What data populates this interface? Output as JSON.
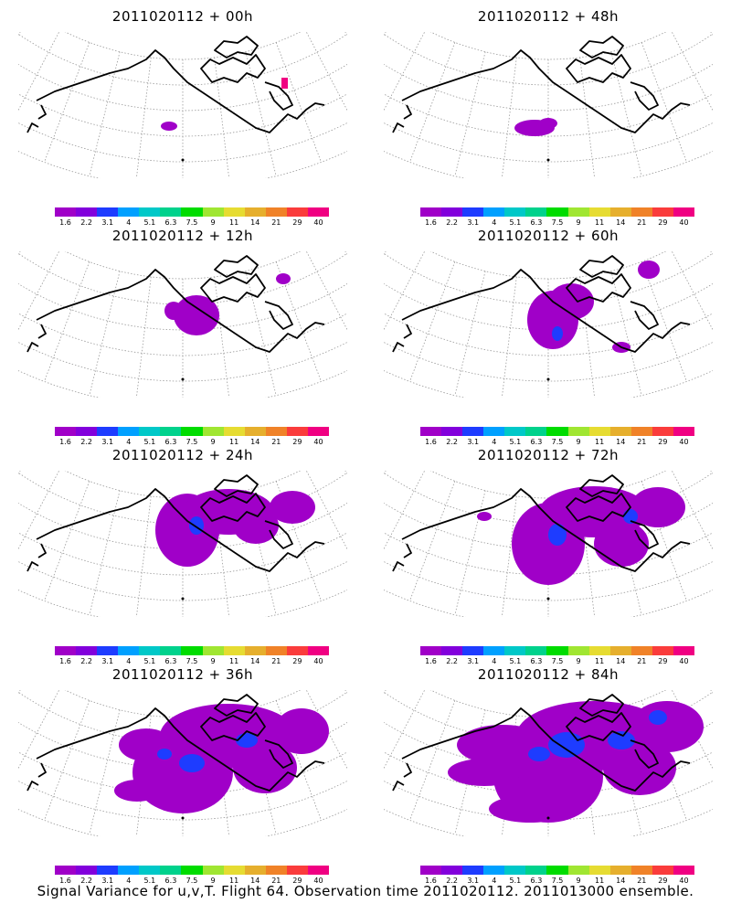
{
  "panels": [
    {
      "title": "2011020112 + 00h",
      "level": 0
    },
    {
      "title": "2011020112 + 48h",
      "level": 4
    },
    {
      "title": "2011020112 + 12h",
      "level": 1
    },
    {
      "title": "2011020112 + 60h",
      "level": 5
    },
    {
      "title": "2011020112 + 24h",
      "level": 2
    },
    {
      "title": "2011020112 + 72h",
      "level": 6
    },
    {
      "title": "2011020112 + 36h",
      "level": 3
    },
    {
      "title": "2011020112 + 84h",
      "level": 7
    }
  ],
  "colorbar": {
    "colors": [
      "#a000c8",
      "#8200dc",
      "#1e3cff",
      "#00a0ff",
      "#00c8c8",
      "#00d28c",
      "#00dc00",
      "#a0e632",
      "#e6dc32",
      "#e6af2d",
      "#f08228",
      "#fa3c3c",
      "#f00082"
    ],
    "labels": [
      "1.6",
      "2.2",
      "3.1",
      "4",
      "5.1",
      "6.3",
      "7.5",
      "9",
      "11",
      "14",
      "21",
      "29",
      "40"
    ]
  },
  "footer": "Signal Variance for u,v,T. Flight 64. Observation time 2011020112. 2011013000 ensemble."
}
